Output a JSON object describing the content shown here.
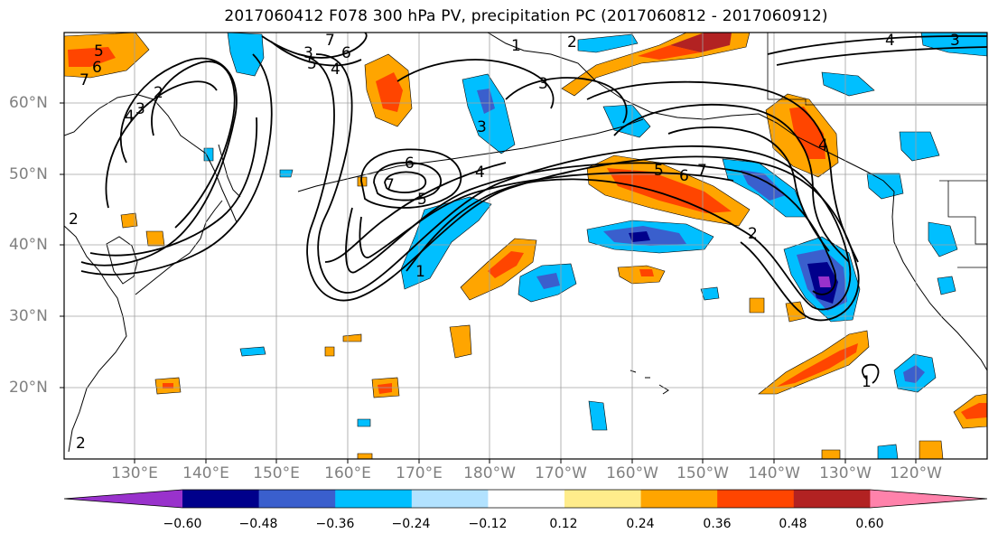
{
  "title": "2017060412 F078 300 hPa PV, precipitation PC (2017060812 - 2017060912)",
  "lat_labels": [
    "60°N",
    "50°N",
    "40°N",
    "30°N",
    "20°N"
  ],
  "lon_labels": [
    "130°E",
    "140°E",
    "150°E",
    "160°E",
    "170°E",
    "180°W",
    "170°W",
    "160°W",
    "150°W",
    "140°W",
    "130°W",
    "120°W"
  ],
  "contour_labels": [
    "5",
    "6",
    "7",
    "4",
    "3",
    "2",
    "3",
    "7",
    "6",
    "4",
    "5",
    "7",
    "6",
    "5",
    "6",
    "7",
    "4",
    "3",
    "2",
    "1",
    "4",
    "3",
    "2",
    "3",
    "4",
    "1",
    "2",
    "1",
    "5",
    "2"
  ],
  "colorbar": {
    "ticks": [
      "−0.60",
      "−0.48",
      "−0.36",
      "−0.24",
      "−0.12",
      "0.12",
      "0.24",
      "0.36",
      "0.48",
      "0.60"
    ],
    "colors": [
      "#9932cc",
      "#00008b",
      "#3a5fcd",
      "#00bfff",
      "#b2e2ff",
      "#ffffff",
      "#ffec8b",
      "#ffa500",
      "#ff4500",
      "#b22222",
      "#ff82ab"
    ]
  }
}
